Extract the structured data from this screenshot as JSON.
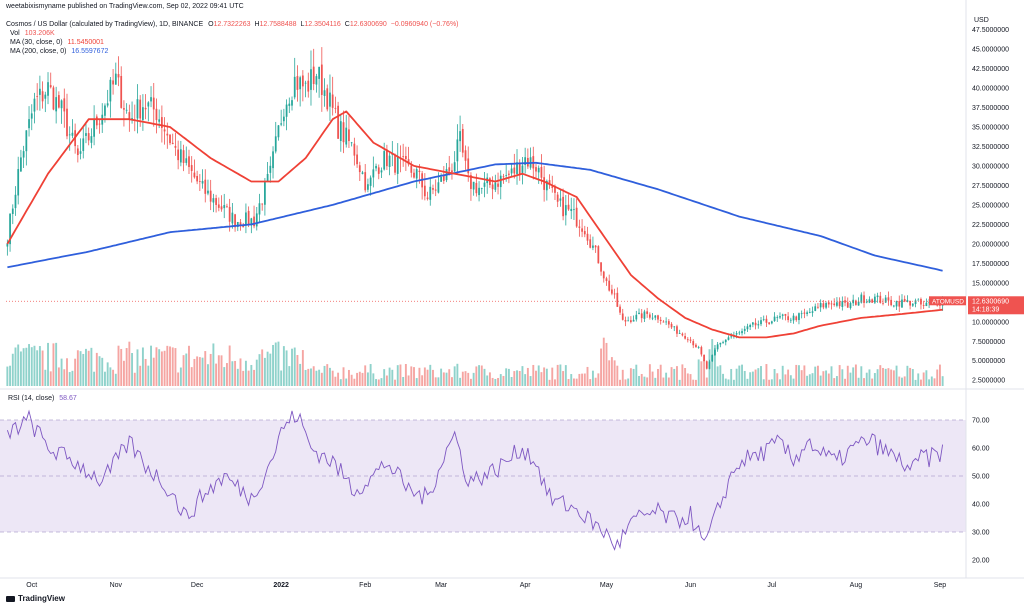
{
  "header": {
    "user": "weetabixismyname",
    "published": "published on TradingView.com, Sep 02, 2022 09:41 UTC",
    "symbol_title": "Cosmos / US Dollar (calculated by TradingView), 1D, BINANCE",
    "ohlc": {
      "o_label": "O",
      "o": "12.7322263",
      "h_label": "H",
      "h": "12.7588488",
      "l_label": "L",
      "l": "12.3504116",
      "c_label": "C",
      "c": "12.6300690",
      "change": "−0.0960940 (−0.76%)"
    },
    "vol_label": "Vol",
    "vol": "103.206K",
    "ma30_label": "MA (30, close, 0)",
    "ma30": "11.5450001",
    "ma200_label": "MA (200, close, 0)",
    "ma200": "16.5597672"
  },
  "colors": {
    "up": "#26a69a",
    "down": "#ef5350",
    "ma30": "#ef4136",
    "ma200": "#2f5fdc",
    "rsi": "#7e57c2",
    "rsi_band": "#ede7f6",
    "vol_up": "#8fd2cb",
    "vol_down": "#f5a5a2"
  },
  "chart_data": [
    {
      "type": "candlestick",
      "title": "Cosmos / US Dollar (calculated by TradingView), 1D, BINANCE",
      "currency_label": "USD",
      "ylim": [
        1.5,
        49.5
      ],
      "y_ticks": [
        "47.5000000",
        "45.0000000",
        "42.5000000",
        "40.0000000",
        "37.5000000",
        "35.0000000",
        "32.5000000",
        "30.0000000",
        "27.5000000",
        "25.0000000",
        "22.5000000",
        "20.0000000",
        "17.5000000",
        "15.0000000",
        "12.5000000",
        "10.0000000",
        "7.5000000",
        "5.0000000",
        "2.5000000"
      ],
      "y_tick_values": [
        47.5,
        45,
        42.5,
        40,
        37.5,
        35,
        32.5,
        30,
        27.5,
        25,
        22.5,
        20,
        17.5,
        15,
        12.5,
        10,
        7.5,
        5,
        2.5
      ],
      "x_ticks": [
        "Oct",
        "Nov",
        "Dec",
        "2022",
        "Feb",
        "Mar",
        "Apr",
        "May",
        "Jun",
        "Jul",
        "Aug",
        "Sep"
      ],
      "x_tick_days": [
        9,
        40,
        70,
        101,
        132,
        160,
        191,
        221,
        252,
        282,
        313,
        344
      ],
      "start_date": "2021-09-22",
      "days": 346,
      "close_anchors": [
        [
          0,
          21
        ],
        [
          5,
          31
        ],
        [
          10,
          38
        ],
        [
          15,
          40
        ],
        [
          20,
          37
        ],
        [
          26,
          31
        ],
        [
          32,
          35
        ],
        [
          40,
          41
        ],
        [
          45,
          36
        ],
        [
          50,
          38
        ],
        [
          55,
          37
        ],
        [
          62,
          32
        ],
        [
          66,
          30
        ],
        [
          72,
          27
        ],
        [
          78,
          25
        ],
        [
          84,
          23
        ],
        [
          91,
          23
        ],
        [
          97,
          29
        ],
        [
          102,
          38
        ],
        [
          106,
          41
        ],
        [
          110,
          40
        ],
        [
          114,
          42
        ],
        [
          118,
          39
        ],
        [
          122,
          35
        ],
        [
          128,
          32
        ],
        [
          133,
          27
        ],
        [
          136,
          30
        ],
        [
          140,
          31
        ],
        [
          145,
          30
        ],
        [
          151,
          29
        ],
        [
          155,
          26
        ],
        [
          160,
          28
        ],
        [
          164,
          30
        ],
        [
          167,
          33
        ],
        [
          170,
          28
        ],
        [
          175,
          27
        ],
        [
          180,
          28
        ],
        [
          186,
          29
        ],
        [
          191,
          31
        ],
        [
          195,
          30
        ],
        [
          198,
          28
        ],
        [
          203,
          25
        ],
        [
          208,
          24
        ],
        [
          213,
          22
        ],
        [
          218,
          18
        ],
        [
          221,
          15
        ],
        [
          224,
          13
        ],
        [
          227,
          10
        ],
        [
          231,
          10.5
        ],
        [
          236,
          11
        ],
        [
          241,
          10.5
        ],
        [
          246,
          9
        ],
        [
          251,
          8
        ],
        [
          255,
          6.5
        ],
        [
          258,
          4
        ],
        [
          262,
          7
        ],
        [
          266,
          8
        ],
        [
          270,
          8.5
        ],
        [
          275,
          9.5
        ],
        [
          280,
          10
        ],
        [
          285,
          10.5
        ],
        [
          290,
          10.5
        ],
        [
          295,
          11
        ],
        [
          300,
          12
        ],
        [
          305,
          12.5
        ],
        [
          310,
          12
        ],
        [
          315,
          13
        ],
        [
          320,
          13
        ],
        [
          325,
          12.5
        ],
        [
          330,
          12.5
        ],
        [
          335,
          12.5
        ],
        [
          338,
          12
        ],
        [
          341,
          12.4
        ],
        [
          345,
          12.63
        ]
      ],
      "ma30_anchors": [
        [
          0,
          20
        ],
        [
          15,
          29
        ],
        [
          30,
          36
        ],
        [
          45,
          36
        ],
        [
          60,
          35
        ],
        [
          75,
          31
        ],
        [
          90,
          28
        ],
        [
          100,
          28
        ],
        [
          110,
          31
        ],
        [
          120,
          36
        ],
        [
          125,
          37
        ],
        [
          135,
          33
        ],
        [
          150,
          30
        ],
        [
          165,
          29
        ],
        [
          180,
          28
        ],
        [
          190,
          29
        ],
        [
          198,
          28
        ],
        [
          210,
          26
        ],
        [
          220,
          21
        ],
        [
          230,
          16
        ],
        [
          240,
          13
        ],
        [
          250,
          10.5
        ],
        [
          260,
          9
        ],
        [
          270,
          8
        ],
        [
          280,
          8
        ],
        [
          290,
          8.5
        ],
        [
          300,
          9.5
        ],
        [
          315,
          10.5
        ],
        [
          330,
          11
        ],
        [
          345,
          11.545
        ]
      ],
      "ma200_anchors": [
        [
          0,
          17
        ],
        [
          30,
          19
        ],
        [
          60,
          21.5
        ],
        [
          90,
          22.5
        ],
        [
          120,
          25
        ],
        [
          150,
          28
        ],
        [
          180,
          30.2
        ],
        [
          195,
          30.4
        ],
        [
          215,
          29.5
        ],
        [
          240,
          27
        ],
        [
          270,
          23.5
        ],
        [
          300,
          21
        ],
        [
          320,
          18.5
        ],
        [
          345,
          16.56
        ]
      ],
      "current_price": "12.6300690",
      "symbol_badge": "ATOMUSD",
      "countdown": "14:18:39"
    },
    {
      "type": "bar",
      "title": "Vol",
      "description": "Daily volume bars (teal up, red down)",
      "last_value": "103.206K"
    },
    {
      "type": "line",
      "title": "RSI (14, close)",
      "last_value": "58.67",
      "ylim": [
        15,
        80
      ],
      "y_ticks": [
        "70.00",
        "60.00",
        "50.00",
        "40.00",
        "30.00",
        "20.00"
      ],
      "y_tick_values": [
        70,
        60,
        50,
        40,
        30,
        20
      ],
      "band": [
        30,
        70
      ],
      "mid": 50,
      "anchors": [
        [
          0,
          65
        ],
        [
          8,
          70
        ],
        [
          15,
          60
        ],
        [
          25,
          55
        ],
        [
          35,
          48
        ],
        [
          45,
          62
        ],
        [
          50,
          55
        ],
        [
          60,
          45
        ],
        [
          66,
          35
        ],
        [
          72,
          43
        ],
        [
          80,
          50
        ],
        [
          90,
          42
        ],
        [
          97,
          55
        ],
        [
          102,
          68
        ],
        [
          107,
          72
        ],
        [
          112,
          60
        ],
        [
          120,
          55
        ],
        [
          128,
          45
        ],
        [
          135,
          50
        ],
        [
          140,
          55
        ],
        [
          148,
          45
        ],
        [
          155,
          42
        ],
        [
          160,
          55
        ],
        [
          165,
          65
        ],
        [
          170,
          48
        ],
        [
          180,
          52
        ],
        [
          190,
          60
        ],
        [
          195,
          55
        ],
        [
          200,
          42
        ],
        [
          210,
          38
        ],
        [
          220,
          30
        ],
        [
          225,
          25
        ],
        [
          230,
          33
        ],
        [
          235,
          36
        ],
        [
          240,
          37
        ],
        [
          246,
          34
        ],
        [
          252,
          36
        ],
        [
          257,
          25
        ],
        [
          260,
          32
        ],
        [
          266,
          48
        ],
        [
          270,
          55
        ],
        [
          278,
          58
        ],
        [
          285,
          62
        ],
        [
          290,
          55
        ],
        [
          295,
          63
        ],
        [
          300,
          58
        ],
        [
          306,
          55
        ],
        [
          312,
          60
        ],
        [
          318,
          63
        ],
        [
          325,
          58
        ],
        [
          330,
          55
        ],
        [
          334,
          52
        ],
        [
          338,
          58
        ],
        [
          340,
          56
        ],
        [
          343,
          58
        ],
        [
          345,
          58.67
        ]
      ]
    }
  ],
  "footer": {
    "brand": "TradingView"
  }
}
